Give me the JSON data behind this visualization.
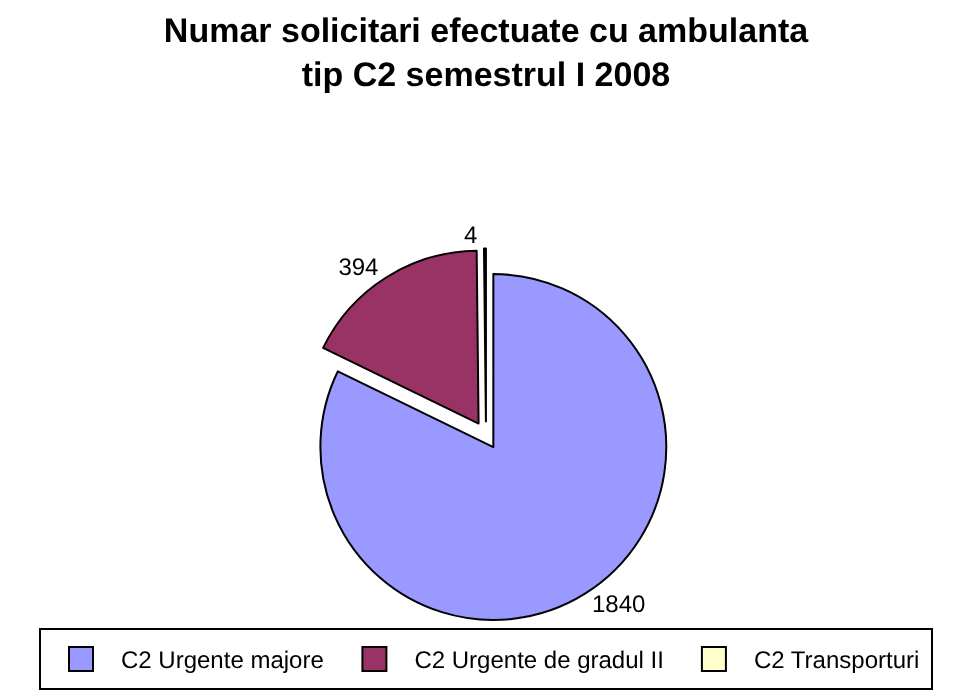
{
  "chart_data": {
    "type": "pie",
    "title": "Numar solicitari efectuate cu ambulanta\ntip C2 semestrul I 2008",
    "categories": [
      "C2 Urgente majore",
      "C2 Urgente de gradul II",
      "C2 Transporturi"
    ],
    "values": [
      1840,
      394,
      4
    ],
    "colors": [
      "#9999ff",
      "#993366",
      "#ffffcc"
    ],
    "data_labels": true,
    "legend": "bottom"
  }
}
